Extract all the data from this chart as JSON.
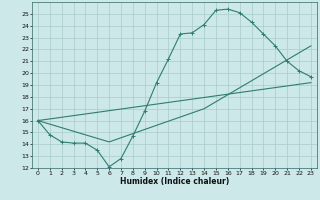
{
  "title": "",
  "xlabel": "Humidex (Indice chaleur)",
  "ylabel": "",
  "bg_color": "#cde8e8",
  "grid_color": "#aacccc",
  "line_color": "#2e7d70",
  "xlim": [
    -0.5,
    23.5
  ],
  "ylim": [
    12,
    26
  ],
  "yticks": [
    12,
    13,
    14,
    15,
    16,
    17,
    18,
    19,
    20,
    21,
    22,
    23,
    24,
    25
  ],
  "xticks": [
    0,
    1,
    2,
    3,
    4,
    5,
    6,
    7,
    8,
    9,
    10,
    11,
    12,
    13,
    14,
    15,
    16,
    17,
    18,
    19,
    20,
    21,
    22,
    23
  ],
  "curve1_x": [
    0,
    1,
    2,
    3,
    4,
    5,
    6,
    7,
    8,
    9,
    10,
    11,
    12,
    13,
    14,
    15,
    16,
    17,
    18,
    19,
    20,
    21,
    22,
    23
  ],
  "curve1_y": [
    16,
    14.8,
    14.2,
    14.1,
    14.1,
    13.5,
    12.1,
    12.8,
    14.7,
    16.8,
    19.2,
    21.2,
    23.3,
    23.4,
    24.1,
    25.3,
    25.4,
    25.1,
    24.3,
    23.3,
    22.3,
    21.0,
    20.2,
    19.7
  ],
  "curve2_x": [
    0,
    23
  ],
  "curve2_y": [
    16,
    19.2
  ],
  "curve3_x": [
    0,
    6,
    14,
    23
  ],
  "curve3_y": [
    16,
    14.2,
    17.0,
    22.3
  ]
}
